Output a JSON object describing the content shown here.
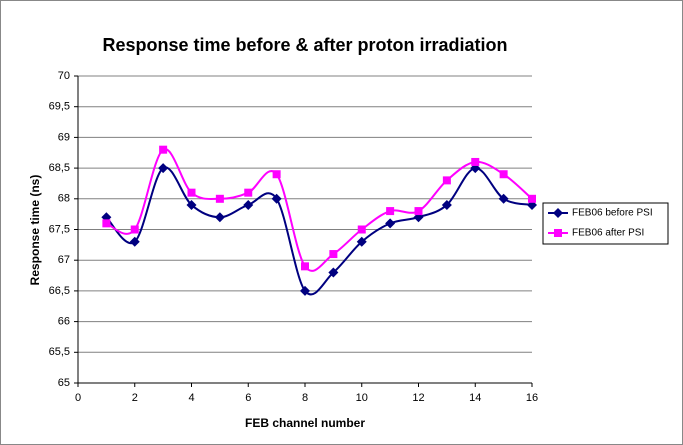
{
  "chart_data": {
    "type": "line",
    "title": "Response time before & after proton irradiation",
    "xlabel": "FEB channel number",
    "ylabel": "Response time (ns)",
    "x": [
      1,
      2,
      3,
      4,
      5,
      6,
      7,
      8,
      9,
      10,
      11,
      12,
      13,
      14,
      15,
      16
    ],
    "series": [
      {
        "name": "FEB06 before PSI",
        "color": "#000080",
        "marker": "diamond",
        "values": [
          67.7,
          67.3,
          68.5,
          67.9,
          67.7,
          67.9,
          68.0,
          66.5,
          66.8,
          67.3,
          67.6,
          67.7,
          67.9,
          68.5,
          68.0,
          67.9
        ]
      },
      {
        "name": "FEB06 after PSI",
        "color": "#ff00ff",
        "marker": "square",
        "values": [
          67.6,
          67.5,
          68.8,
          68.1,
          68.0,
          68.1,
          68.4,
          66.9,
          67.1,
          67.5,
          67.8,
          67.8,
          68.3,
          68.6,
          68.4,
          68.0
        ]
      }
    ],
    "xlim": [
      0,
      16
    ],
    "xticks": [
      0,
      2,
      4,
      6,
      8,
      10,
      12,
      14,
      16
    ],
    "ylim": [
      65,
      70
    ],
    "yticks": [
      65,
      {
        "value": 65.5,
        "label": "65,5"
      },
      66,
      {
        "value": 66.5,
        "label": "66,5"
      },
      67,
      {
        "value": 67.5,
        "label": "67,5"
      },
      68,
      {
        "value": 68.5,
        "label": "68,5"
      },
      69,
      {
        "value": 69.5,
        "label": "69,5"
      },
      70
    ],
    "grid": true,
    "smooth": true,
    "legend": "right"
  }
}
